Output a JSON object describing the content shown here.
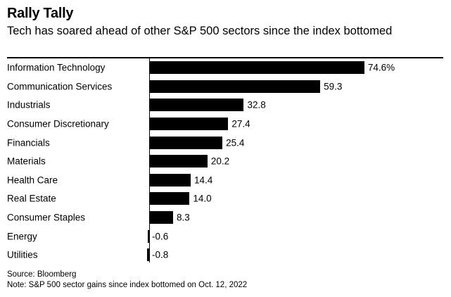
{
  "header": {
    "title": "Rally Tally",
    "subtitle": "Tech has soared ahead of other S&P 500 sectors since the index bottomed"
  },
  "footer": {
    "source": "Source: Bloomberg",
    "note": "Note: S&P 500 sector gains since index bottomed on Oct. 12, 2022"
  },
  "colors": {
    "bar": "#000000",
    "text": "#000000",
    "rule": "#000000",
    "background": "#ffffff"
  },
  "chart_data": {
    "type": "bar",
    "orientation": "horizontal",
    "title": "Rally Tally",
    "subtitle": "Tech has soared ahead of other S&P 500 sectors since the index bottomed",
    "unit": "%",
    "categories": [
      "Information Technology",
      "Communication Services",
      "Industrials",
      "Consumer Discretionary",
      "Financials",
      "Materials",
      "Health Care",
      "Real Estate",
      "Consumer Staples",
      "Energy",
      "Utilities"
    ],
    "values": [
      74.6,
      59.3,
      32.8,
      27.4,
      25.4,
      20.2,
      14.4,
      14.0,
      8.3,
      -0.6,
      -0.8
    ],
    "value_labels": [
      "74.6%",
      "59.3",
      "32.8",
      "27.4",
      "25.4",
      "20.2",
      "14.4",
      "14.0",
      "8.3",
      "-0.6",
      "-0.8"
    ],
    "xlim": [
      -1,
      80
    ],
    "zero_baseline_shown": true,
    "grid": false,
    "legend": false,
    "bar_color": "#000000",
    "source": "Source: Bloomberg",
    "note": "Note: S&P 500 sector gains since index bottomed on Oct. 12, 2022"
  }
}
